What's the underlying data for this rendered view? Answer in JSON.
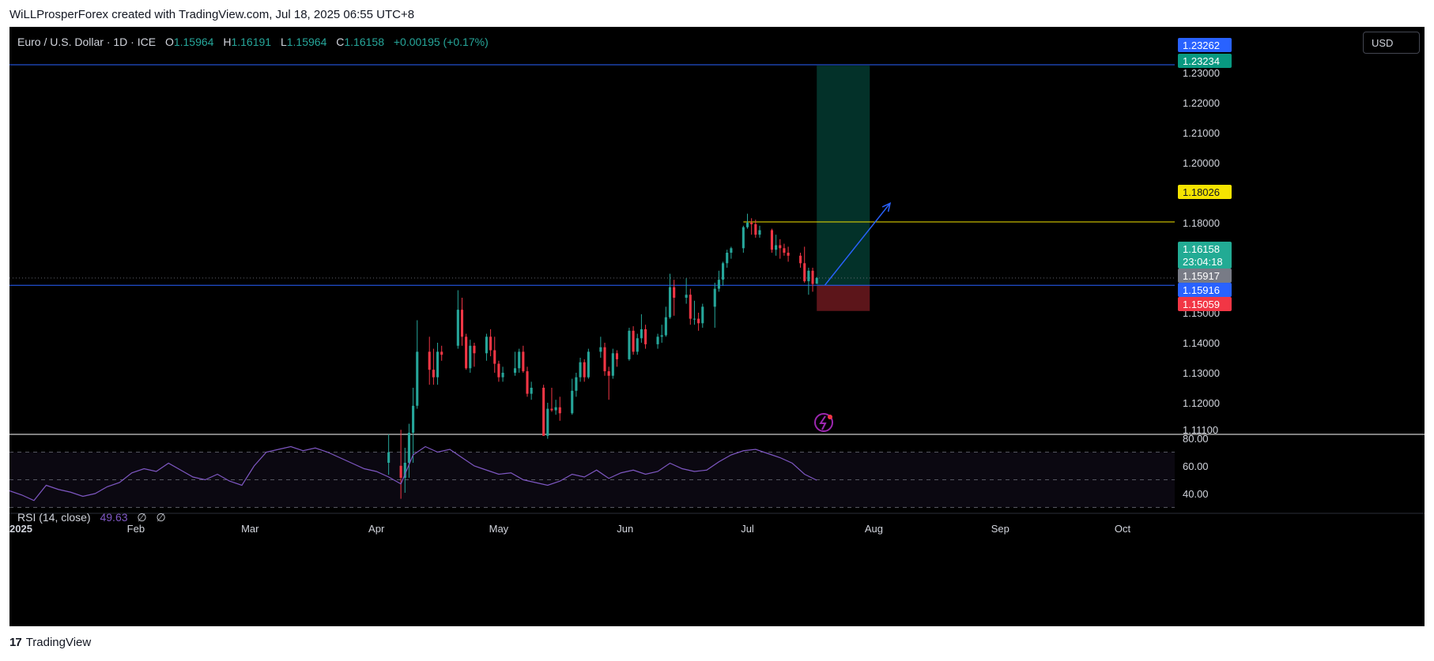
{
  "header": {
    "credit": "WiLLProsperForex created with TradingView.com, Jul 18, 2025 06:55 UTC+8"
  },
  "legend": {
    "symbol": "Euro / U.S. Dollar · 1D · ICE",
    "open_label": "O",
    "open": "1.15964",
    "high_label": "H",
    "high": "1.16191",
    "low_label": "L",
    "low": "1.15964",
    "close_label": "C",
    "close": "1.16158",
    "change": "+0.00195 (+0.17%)"
  },
  "currency_button": {
    "label": "USD"
  },
  "rsi_legend": {
    "label": "RSI (14, close)",
    "value": "49.63",
    "na1": "∅",
    "na2": "∅"
  },
  "footer": {
    "logo_mark": "17",
    "logo_text": "TradingView"
  },
  "colors": {
    "up": "#26a69a",
    "down": "#f23645",
    "rsi": "#7e57c2",
    "level_line": "#2962ff",
    "tp_line": "#f5e400"
  },
  "chart_data": {
    "type": "candlestick",
    "symbol": "EURUSD",
    "timeframe": "1D",
    "x_ticks": [
      {
        "date": "2025-01-01",
        "label": "2025"
      },
      {
        "date": "2025-02-01",
        "label": "Feb"
      },
      {
        "date": "2025-03-01",
        "label": "Mar"
      },
      {
        "date": "2025-04-01",
        "label": "Apr"
      },
      {
        "date": "2025-05-01",
        "label": "May"
      },
      {
        "date": "2025-06-01",
        "label": "Jun"
      },
      {
        "date": "2025-07-01",
        "label": "Jul"
      },
      {
        "date": "2025-08-01",
        "label": "Aug"
      },
      {
        "date": "2025-09-01",
        "label": "Sep"
      },
      {
        "date": "2025-10-01",
        "label": "Oct"
      }
    ],
    "y_ticks": [
      "1.11100",
      "1.12000",
      "1.13000",
      "1.14000",
      "1.15000",
      "1.16000",
      "1.17000",
      "1.18000",
      "1.19000",
      "1.20000",
      "1.21000",
      "1.22000",
      "1.23000"
    ],
    "ylim": [
      1.111,
      1.2345
    ],
    "price_labels": [
      {
        "value": "1.23262",
        "price": 1.23262,
        "color": "#2962ff"
      },
      {
        "value": "1.23234",
        "price": 1.23234,
        "color": "#089981"
      },
      {
        "value": "1.18026",
        "price": 1.18026,
        "color": "#f5e400"
      },
      {
        "value": "1.16158",
        "price": 1.16158,
        "color": "#22ab94",
        "countdown": "23:04:18"
      },
      {
        "value": "1.15917",
        "price": 1.15917,
        "color": "#787b86"
      },
      {
        "value": "1.15916",
        "price": 1.15916,
        "color": "#2962ff"
      },
      {
        "value": "1.15059",
        "price": 1.15059,
        "color": "#f23645"
      }
    ],
    "horizontal_lines": [
      {
        "price": 1.23262,
        "color": "#2962ff"
      },
      {
        "price": 1.15916,
        "color": "#2962ff"
      },
      {
        "price": 1.16158,
        "color": "#787b86",
        "style": "dotted"
      },
      {
        "start": "2025-06-30",
        "price": 1.18026,
        "color": "#f5e400"
      }
    ],
    "position": {
      "type": "long",
      "start": "2025-07-18",
      "end": "2025-07-31",
      "entry": 1.15916,
      "target": 1.23234,
      "stop": 1.15059
    },
    "trend_arrow": {
      "from_date": "2025-07-20",
      "from_price": 1.1592,
      "to_date": "2025-08-05",
      "to_price": 1.1865
    },
    "candles": [
      {
        "date": "2025-04-04",
        "o": 1.1,
        "h": 1.1095,
        "l": 1.096,
        "c": 1.1035
      },
      {
        "date": "2025-04-07",
        "o": 1.099,
        "h": 1.111,
        "l": 1.088,
        "c": 1.095
      },
      {
        "date": "2025-04-08",
        "o": 1.095,
        "h": 1.105,
        "l": 1.09,
        "c": 1.1
      },
      {
        "date": "2025-04-09",
        "o": 1.1,
        "h": 1.113,
        "l": 1.095,
        "c": 1.11
      },
      {
        "date": "2025-04-10",
        "o": 1.11,
        "h": 1.125,
        "l": 1.1,
        "c": 1.119
      },
      {
        "date": "2025-04-11",
        "o": 1.119,
        "h": 1.1475,
        "l": 1.118,
        "c": 1.137
      },
      {
        "date": "2025-04-14",
        "o": 1.137,
        "h": 1.142,
        "l": 1.126,
        "c": 1.131
      },
      {
        "date": "2025-04-15",
        "o": 1.131,
        "h": 1.138,
        "l": 1.126,
        "c": 1.1285
      },
      {
        "date": "2025-04-16",
        "o": 1.1285,
        "h": 1.14,
        "l": 1.126,
        "c": 1.137
      },
      {
        "date": "2025-04-17",
        "o": 1.137,
        "h": 1.139,
        "l": 1.134,
        "c": 1.136
      },
      {
        "date": "2025-04-21",
        "o": 1.139,
        "h": 1.1575,
        "l": 1.138,
        "c": 1.151
      },
      {
        "date": "2025-04-22",
        "o": 1.151,
        "h": 1.155,
        "l": 1.139,
        "c": 1.142
      },
      {
        "date": "2025-04-23",
        "o": 1.142,
        "h": 1.143,
        "l": 1.131,
        "c": 1.1315
      },
      {
        "date": "2025-04-24",
        "o": 1.1315,
        "h": 1.141,
        "l": 1.13,
        "c": 1.139
      },
      {
        "date": "2025-04-25",
        "o": 1.139,
        "h": 1.14,
        "l": 1.132,
        "c": 1.1365
      },
      {
        "date": "2025-04-28",
        "o": 1.1365,
        "h": 1.143,
        "l": 1.134,
        "c": 1.142
      },
      {
        "date": "2025-04-29",
        "o": 1.142,
        "h": 1.1445,
        "l": 1.1355,
        "c": 1.1375
      },
      {
        "date": "2025-04-30",
        "o": 1.1375,
        "h": 1.142,
        "l": 1.13,
        "c": 1.133
      },
      {
        "date": "2025-05-01",
        "o": 1.133,
        "h": 1.134,
        "l": 1.127,
        "c": 1.1285
      },
      {
        "date": "2025-05-02",
        "o": 1.1285,
        "h": 1.132,
        "l": 1.127,
        "c": 1.13
      },
      {
        "date": "2025-05-05",
        "o": 1.13,
        "h": 1.137,
        "l": 1.129,
        "c": 1.1315
      },
      {
        "date": "2025-05-06",
        "o": 1.1315,
        "h": 1.138,
        "l": 1.13,
        "c": 1.137
      },
      {
        "date": "2025-05-07",
        "o": 1.137,
        "h": 1.139,
        "l": 1.13,
        "c": 1.1305
      },
      {
        "date": "2025-05-08",
        "o": 1.1305,
        "h": 1.132,
        "l": 1.122,
        "c": 1.123
      },
      {
        "date": "2025-05-09",
        "o": 1.123,
        "h": 1.127,
        "l": 1.121,
        "c": 1.125
      },
      {
        "date": "2025-05-12",
        "o": 1.125,
        "h": 1.126,
        "l": 1.109,
        "c": 1.109
      },
      {
        "date": "2025-05-13",
        "o": 1.109,
        "h": 1.12,
        "l": 1.108,
        "c": 1.118
      },
      {
        "date": "2025-05-14",
        "o": 1.118,
        "h": 1.125,
        "l": 1.117,
        "c": 1.1175
      },
      {
        "date": "2025-05-15",
        "o": 1.1175,
        "h": 1.121,
        "l": 1.116,
        "c": 1.1185
      },
      {
        "date": "2025-05-16",
        "o": 1.1185,
        "h": 1.122,
        "l": 1.114,
        "c": 1.1165
      },
      {
        "date": "2025-05-19",
        "o": 1.1165,
        "h": 1.128,
        "l": 1.116,
        "c": 1.124
      },
      {
        "date": "2025-05-20",
        "o": 1.124,
        "h": 1.13,
        "l": 1.122,
        "c": 1.1285
      },
      {
        "date": "2025-05-21",
        "o": 1.1285,
        "h": 1.135,
        "l": 1.127,
        "c": 1.1335
      },
      {
        "date": "2025-05-22",
        "o": 1.1335,
        "h": 1.1345,
        "l": 1.127,
        "c": 1.1285
      },
      {
        "date": "2025-05-23",
        "o": 1.1285,
        "h": 1.138,
        "l": 1.128,
        "c": 1.137
      },
      {
        "date": "2025-05-26",
        "o": 1.137,
        "h": 1.142,
        "l": 1.135,
        "c": 1.1385
      },
      {
        "date": "2025-05-27",
        "o": 1.1385,
        "h": 1.14,
        "l": 1.129,
        "c": 1.1305
      },
      {
        "date": "2025-05-28",
        "o": 1.1305,
        "h": 1.132,
        "l": 1.121,
        "c": 1.129
      },
      {
        "date": "2025-05-29",
        "o": 1.129,
        "h": 1.138,
        "l": 1.128,
        "c": 1.1365
      },
      {
        "date": "2025-05-30",
        "o": 1.1365,
        "h": 1.1375,
        "l": 1.132,
        "c": 1.1345
      },
      {
        "date": "2025-06-02",
        "o": 1.1345,
        "h": 1.145,
        "l": 1.134,
        "c": 1.144
      },
      {
        "date": "2025-06-03",
        "o": 1.144,
        "h": 1.1455,
        "l": 1.136,
        "c": 1.137
      },
      {
        "date": "2025-06-04",
        "o": 1.137,
        "h": 1.143,
        "l": 1.136,
        "c": 1.1415
      },
      {
        "date": "2025-06-05",
        "o": 1.1415,
        "h": 1.1495,
        "l": 1.14,
        "c": 1.1445
      },
      {
        "date": "2025-06-06",
        "o": 1.1445,
        "h": 1.146,
        "l": 1.138,
        "c": 1.1395
      },
      {
        "date": "2025-06-09",
        "o": 1.1395,
        "h": 1.143,
        "l": 1.138,
        "c": 1.142
      },
      {
        "date": "2025-06-10",
        "o": 1.142,
        "h": 1.146,
        "l": 1.14,
        "c": 1.1425
      },
      {
        "date": "2025-06-11",
        "o": 1.1425,
        "h": 1.152,
        "l": 1.142,
        "c": 1.1485
      },
      {
        "date": "2025-06-12",
        "o": 1.1485,
        "h": 1.163,
        "l": 1.148,
        "c": 1.1585
      },
      {
        "date": "2025-06-13",
        "o": 1.1585,
        "h": 1.161,
        "l": 1.149,
        "c": 1.155
      },
      {
        "date": "2025-06-16",
        "o": 1.155,
        "h": 1.1615,
        "l": 1.153,
        "c": 1.156
      },
      {
        "date": "2025-06-17",
        "o": 1.156,
        "h": 1.158,
        "l": 1.146,
        "c": 1.148
      },
      {
        "date": "2025-06-18",
        "o": 1.148,
        "h": 1.154,
        "l": 1.146,
        "c": 1.148
      },
      {
        "date": "2025-06-19",
        "o": 1.148,
        "h": 1.15,
        "l": 1.144,
        "c": 1.1465
      },
      {
        "date": "2025-06-20",
        "o": 1.1465,
        "h": 1.153,
        "l": 1.145,
        "c": 1.152
      },
      {
        "date": "2025-06-23",
        "o": 1.152,
        "h": 1.16,
        "l": 1.145,
        "c": 1.158
      },
      {
        "date": "2025-06-24",
        "o": 1.158,
        "h": 1.164,
        "l": 1.157,
        "c": 1.161
      },
      {
        "date": "2025-06-25",
        "o": 1.161,
        "h": 1.167,
        "l": 1.159,
        "c": 1.1665
      },
      {
        "date": "2025-06-26",
        "o": 1.1665,
        "h": 1.171,
        "l": 1.165,
        "c": 1.17
      },
      {
        "date": "2025-06-27",
        "o": 1.17,
        "h": 1.172,
        "l": 1.168,
        "c": 1.1715
      },
      {
        "date": "2025-06-30",
        "o": 1.1715,
        "h": 1.179,
        "l": 1.17,
        "c": 1.1785
      },
      {
        "date": "2025-07-01",
        "o": 1.1785,
        "h": 1.183,
        "l": 1.178,
        "c": 1.18
      },
      {
        "date": "2025-07-02",
        "o": 1.18,
        "h": 1.1815,
        "l": 1.176,
        "c": 1.1795
      },
      {
        "date": "2025-07-03",
        "o": 1.1795,
        "h": 1.181,
        "l": 1.175,
        "c": 1.176
      },
      {
        "date": "2025-07-04",
        "o": 1.176,
        "h": 1.179,
        "l": 1.175,
        "c": 1.1775
      },
      {
        "date": "2025-07-07",
        "o": 1.1775,
        "h": 1.178,
        "l": 1.17,
        "c": 1.171
      },
      {
        "date": "2025-07-08",
        "o": 1.171,
        "h": 1.176,
        "l": 1.169,
        "c": 1.1725
      },
      {
        "date": "2025-07-09",
        "o": 1.1725,
        "h": 1.1745,
        "l": 1.168,
        "c": 1.1715
      },
      {
        "date": "2025-07-10",
        "o": 1.1715,
        "h": 1.173,
        "l": 1.169,
        "c": 1.17
      },
      {
        "date": "2025-07-11",
        "o": 1.17,
        "h": 1.172,
        "l": 1.167,
        "c": 1.169
      },
      {
        "date": "2025-07-14",
        "o": 1.169,
        "h": 1.17,
        "l": 1.165,
        "c": 1.1665
      },
      {
        "date": "2025-07-15",
        "o": 1.1665,
        "h": 1.172,
        "l": 1.16,
        "c": 1.1605
      },
      {
        "date": "2025-07-16",
        "o": 1.1605,
        "h": 1.165,
        "l": 1.156,
        "c": 1.164
      },
      {
        "date": "2025-07-17",
        "o": 1.164,
        "h": 1.165,
        "l": 1.157,
        "c": 1.1596
      },
      {
        "date": "2025-07-18",
        "o": 1.15964,
        "h": 1.16191,
        "l": 1.15964,
        "c": 1.16158
      }
    ],
    "rsi": {
      "name": "RSI (14, close)",
      "levels": [
        70,
        50,
        30
      ],
      "y_ticks": [
        "80.00",
        "60.00",
        "40.00"
      ],
      "ylim": [
        28,
        80
      ],
      "line": [
        [
          "2025-01-01",
          42
        ],
        [
          "2025-01-04",
          39
        ],
        [
          "2025-01-07",
          35
        ],
        [
          "2025-01-10",
          46
        ],
        [
          "2025-01-13",
          43
        ],
        [
          "2025-01-16",
          41
        ],
        [
          "2025-01-19",
          38
        ],
        [
          "2025-01-22",
          40
        ],
        [
          "2025-01-25",
          45
        ],
        [
          "2025-01-28",
          48
        ],
        [
          "2025-01-31",
          55
        ],
        [
          "2025-02-03",
          58
        ],
        [
          "2025-02-06",
          56
        ],
        [
          "2025-02-09",
          62
        ],
        [
          "2025-02-12",
          57
        ],
        [
          "2025-02-15",
          52
        ],
        [
          "2025-02-18",
          50
        ],
        [
          "2025-02-21",
          54
        ],
        [
          "2025-02-24",
          49
        ],
        [
          "2025-02-27",
          46
        ],
        [
          "2025-03-02",
          60
        ],
        [
          "2025-03-05",
          70
        ],
        [
          "2025-03-08",
          72
        ],
        [
          "2025-03-11",
          74
        ],
        [
          "2025-03-14",
          71
        ],
        [
          "2025-03-17",
          73
        ],
        [
          "2025-03-20",
          70
        ],
        [
          "2025-03-23",
          66
        ],
        [
          "2025-03-26",
          62
        ],
        [
          "2025-03-29",
          58
        ],
        [
          "2025-04-01",
          56
        ],
        [
          "2025-04-04",
          52
        ],
        [
          "2025-04-07",
          47
        ],
        [
          "2025-04-10",
          68
        ],
        [
          "2025-04-13",
          74
        ],
        [
          "2025-04-16",
          70
        ],
        [
          "2025-04-19",
          72
        ],
        [
          "2025-04-22",
          66
        ],
        [
          "2025-04-25",
          60
        ],
        [
          "2025-04-28",
          57
        ],
        [
          "2025-05-01",
          54
        ],
        [
          "2025-05-04",
          55
        ],
        [
          "2025-05-07",
          50
        ],
        [
          "2025-05-10",
          48
        ],
        [
          "2025-05-13",
          46
        ],
        [
          "2025-05-16",
          49
        ],
        [
          "2025-05-19",
          54
        ],
        [
          "2025-05-22",
          52
        ],
        [
          "2025-05-25",
          57
        ],
        [
          "2025-05-28",
          51
        ],
        [
          "2025-05-31",
          55
        ],
        [
          "2025-06-03",
          57
        ],
        [
          "2025-06-06",
          54
        ],
        [
          "2025-06-09",
          56
        ],
        [
          "2025-06-12",
          62
        ],
        [
          "2025-06-15",
          58
        ],
        [
          "2025-06-18",
          56
        ],
        [
          "2025-06-21",
          57
        ],
        [
          "2025-06-24",
          63
        ],
        [
          "2025-06-27",
          68
        ],
        [
          "2025-06-30",
          71
        ],
        [
          "2025-07-03",
          72
        ],
        [
          "2025-07-06",
          69
        ],
        [
          "2025-07-09",
          66
        ],
        [
          "2025-07-12",
          62
        ],
        [
          "2025-07-15",
          54
        ],
        [
          "2025-07-18",
          49.63
        ]
      ]
    }
  }
}
